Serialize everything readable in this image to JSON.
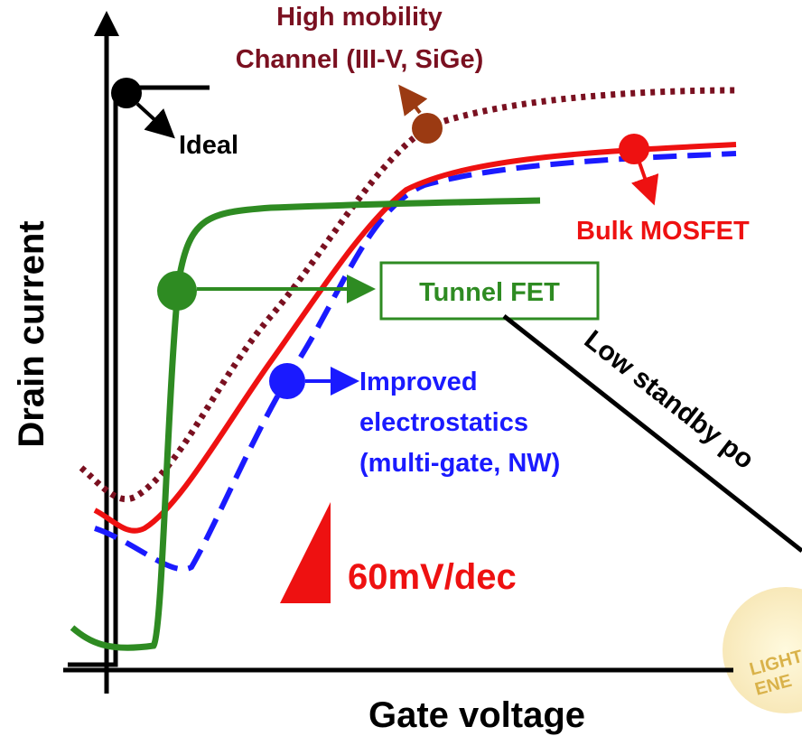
{
  "labels": {
    "high_mobility": [
      "High mobility",
      "Channel (III-V, SiGe)"
    ],
    "ideal": "Ideal",
    "bulk_mosfet": "Bulk MOSFET",
    "tunnel_fet": "Tunnel FET",
    "improved": [
      "Improved",
      "electrostatics",
      "(multi-gate, NW)"
    ],
    "slope": "60mV/dec",
    "y_axis": "Drain current",
    "x_axis": "Gate voltage",
    "low_standby": "Low standby po"
  }
}
